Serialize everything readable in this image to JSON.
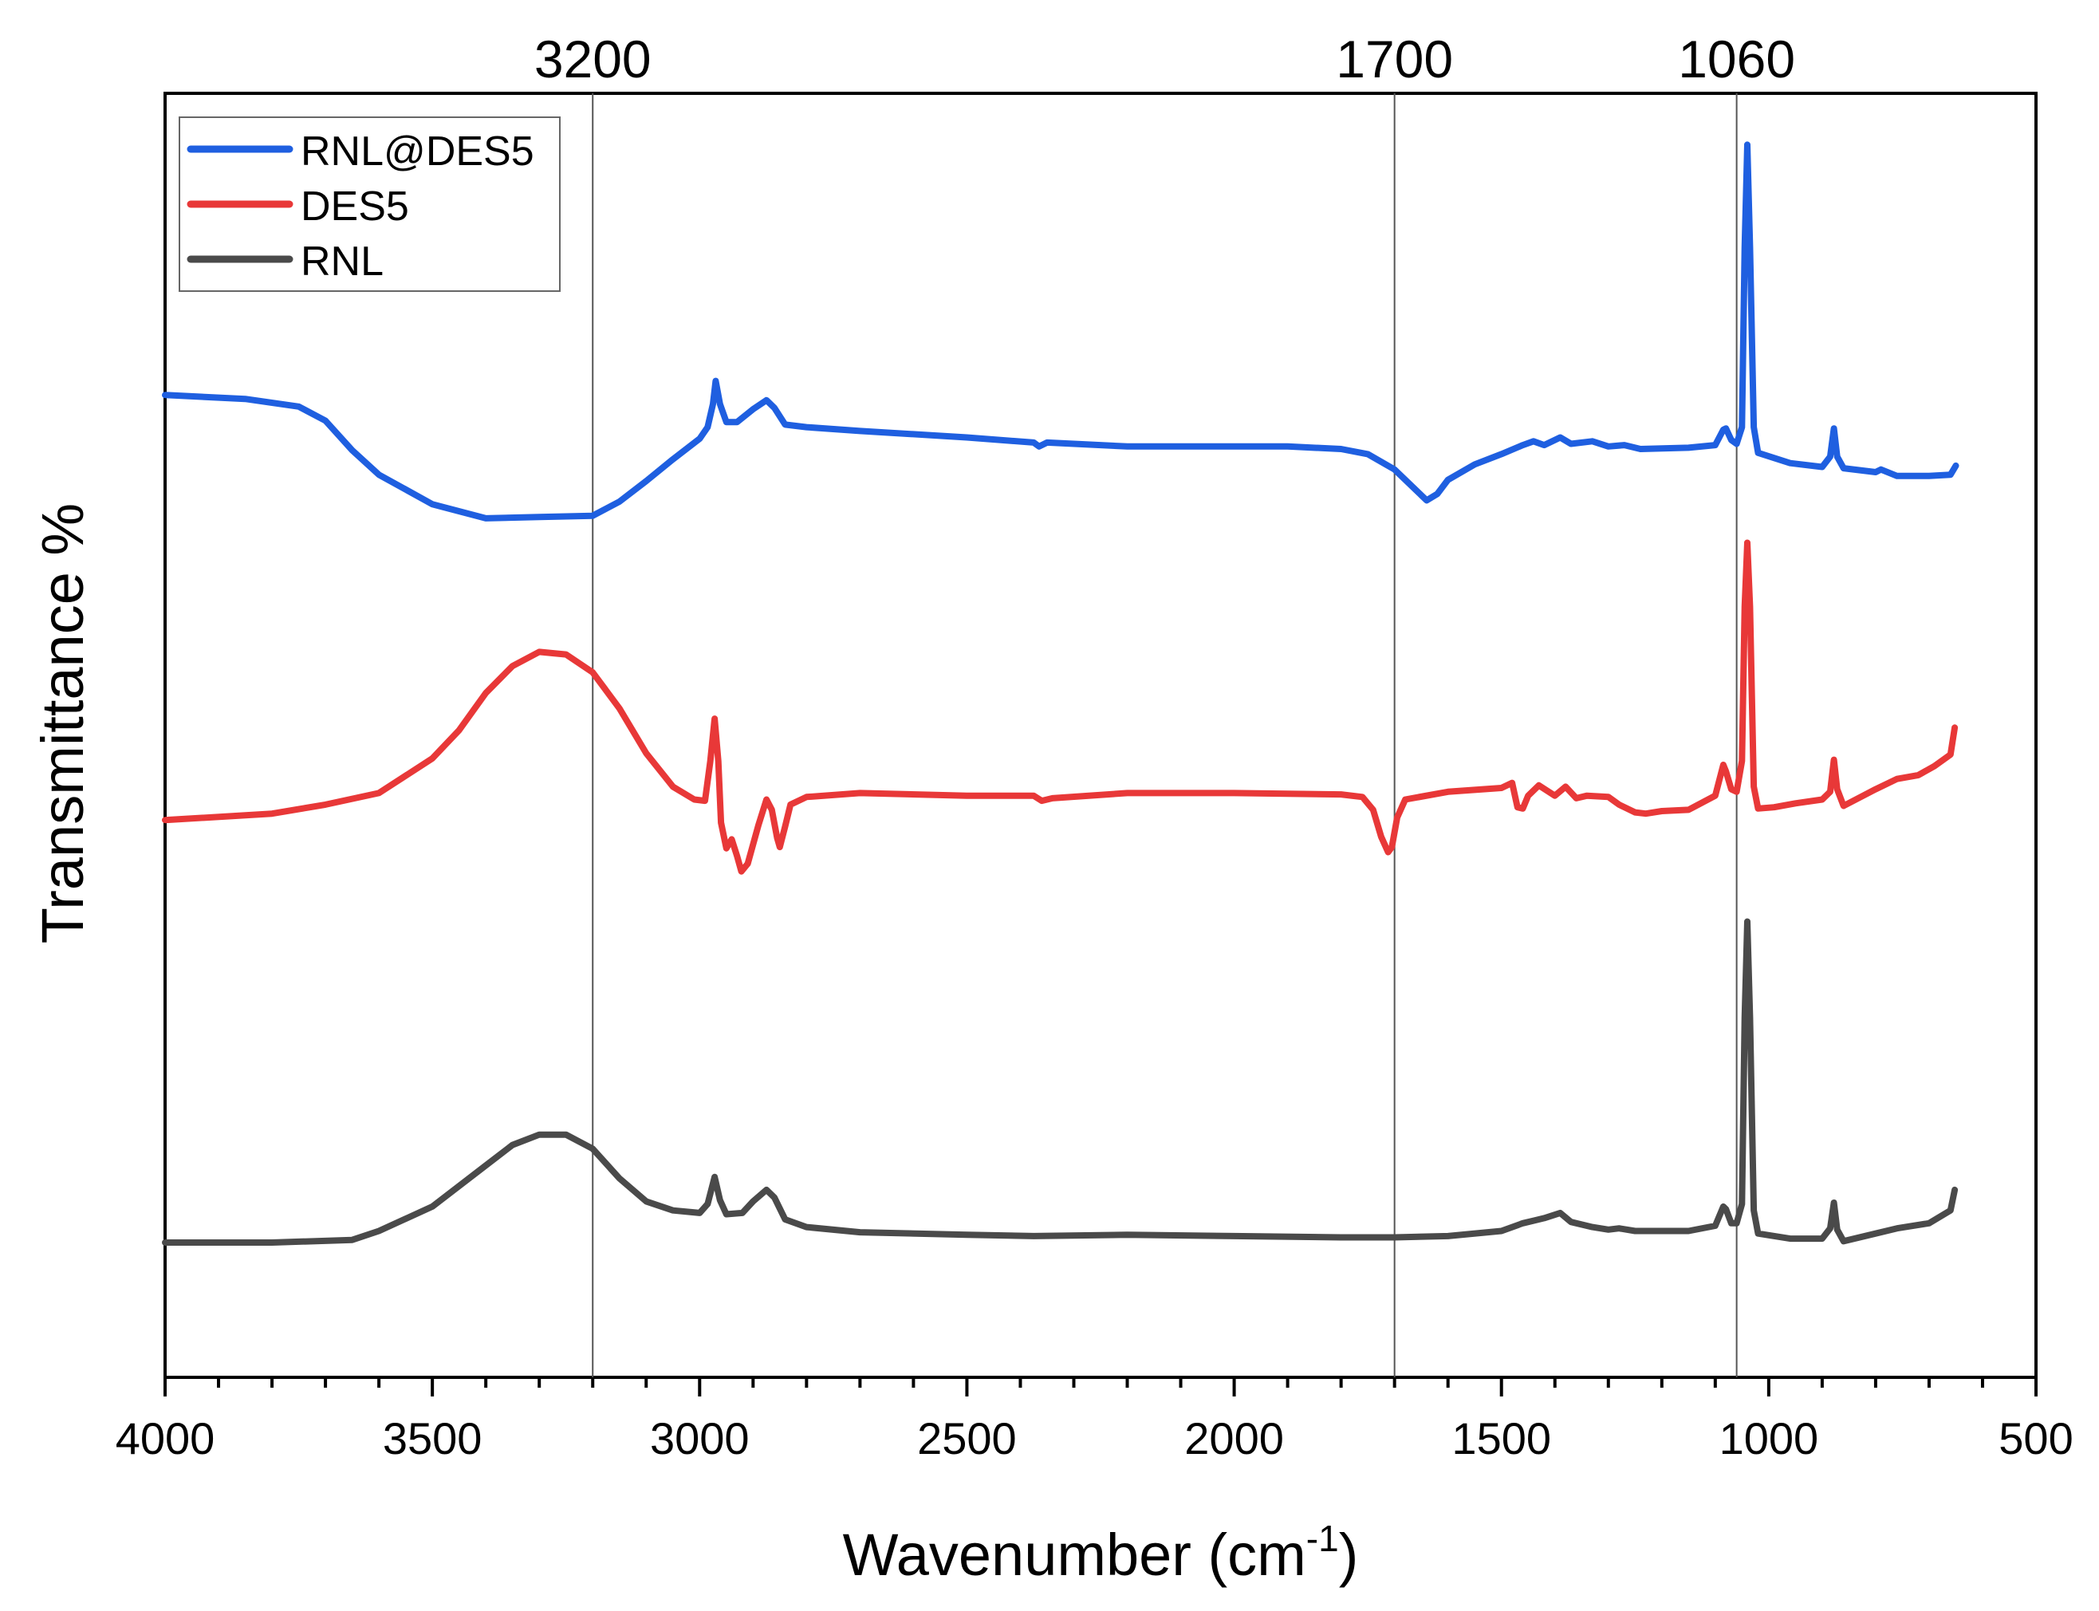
{
  "chart_data": {
    "type": "line",
    "title": "",
    "xlabel_main": "Wavenumber (cm",
    "xlabel_sup": "-1",
    "xlabel_tail": ")",
    "ylabel": "Transmittance %",
    "xlim": [
      4000,
      500
    ],
    "x_reversed": true,
    "y_ticks_shown": false,
    "y_units": "offset stacked, arbitrary",
    "ylim": [
      0,
      100
    ],
    "x_ticks": [
      4000,
      3500,
      3000,
      2500,
      2000,
      1500,
      1000,
      500
    ],
    "x_minor_step": 100,
    "reference_lines": [
      {
        "x": 3200,
        "label": "3200"
      },
      {
        "x": 1700,
        "label": "1700"
      },
      {
        "x": 1060,
        "label": "1060"
      }
    ],
    "legend": {
      "placement": "top-left",
      "entries": [
        "RNL@DES5",
        "DES5",
        "RNL"
      ]
    },
    "series": [
      {
        "name": "RNL@DES5",
        "color": "#1f5fe0",
        "points": [
          [
            4000,
            76.5
          ],
          [
            3850,
            76.2
          ],
          [
            3750,
            75.6
          ],
          [
            3700,
            74.5
          ],
          [
            3650,
            72.2
          ],
          [
            3600,
            70.3
          ],
          [
            3500,
            68.0
          ],
          [
            3400,
            66.9
          ],
          [
            3300,
            67.0
          ],
          [
            3200,
            67.1
          ],
          [
            3150,
            68.2
          ],
          [
            3100,
            69.8
          ],
          [
            3050,
            71.5
          ],
          [
            3000,
            73.1
          ],
          [
            2985,
            74.0
          ],
          [
            2975,
            75.8
          ],
          [
            2970,
            77.6
          ],
          [
            2962,
            75.8
          ],
          [
            2950,
            74.4
          ],
          [
            2930,
            74.4
          ],
          [
            2900,
            75.4
          ],
          [
            2875,
            76.1
          ],
          [
            2860,
            75.5
          ],
          [
            2840,
            74.2
          ],
          [
            2800,
            74.0
          ],
          [
            2700,
            73.7
          ],
          [
            2500,
            73.2
          ],
          [
            2375,
            72.8
          ],
          [
            2365,
            72.5
          ],
          [
            2350,
            72.8
          ],
          [
            2200,
            72.5
          ],
          [
            2000,
            72.5
          ],
          [
            1900,
            72.5
          ],
          [
            1800,
            72.3
          ],
          [
            1750,
            71.9
          ],
          [
            1700,
            70.7
          ],
          [
            1660,
            69.1
          ],
          [
            1640,
            68.3
          ],
          [
            1620,
            68.8
          ],
          [
            1600,
            69.9
          ],
          [
            1550,
            71.1
          ],
          [
            1500,
            71.9
          ],
          [
            1460,
            72.6
          ],
          [
            1440,
            72.9
          ],
          [
            1420,
            72.6
          ],
          [
            1390,
            73.2
          ],
          [
            1370,
            72.7
          ],
          [
            1330,
            72.9
          ],
          [
            1300,
            72.5
          ],
          [
            1270,
            72.6
          ],
          [
            1240,
            72.3
          ],
          [
            1150,
            72.4
          ],
          [
            1100,
            72.6
          ],
          [
            1085,
            73.8
          ],
          [
            1080,
            73.9
          ],
          [
            1070,
            73.0
          ],
          [
            1060,
            72.7
          ],
          [
            1050,
            74.0
          ],
          [
            1045,
            88.0
          ],
          [
            1040,
            96.0
          ],
          [
            1035,
            88.0
          ],
          [
            1028,
            74.0
          ],
          [
            1020,
            72.0
          ],
          [
            960,
            71.2
          ],
          [
            900,
            70.9
          ],
          [
            885,
            71.7
          ],
          [
            878,
            73.9
          ],
          [
            872,
            71.7
          ],
          [
            860,
            70.8
          ],
          [
            800,
            70.5
          ],
          [
            790,
            70.7
          ],
          [
            760,
            70.2
          ],
          [
            700,
            70.2
          ],
          [
            660,
            70.3
          ],
          [
            650,
            71.0
          ]
        ]
      },
      {
        "name": "DES5",
        "color": "#e83838",
        "points": [
          [
            4000,
            43.4
          ],
          [
            3800,
            43.9
          ],
          [
            3700,
            44.6
          ],
          [
            3600,
            45.5
          ],
          [
            3500,
            48.2
          ],
          [
            3450,
            50.4
          ],
          [
            3400,
            53.3
          ],
          [
            3350,
            55.4
          ],
          [
            3300,
            56.5
          ],
          [
            3250,
            56.3
          ],
          [
            3200,
            54.9
          ],
          [
            3150,
            52.1
          ],
          [
            3100,
            48.6
          ],
          [
            3050,
            46.0
          ],
          [
            3010,
            45.0
          ],
          [
            2990,
            44.9
          ],
          [
            2980,
            48.0
          ],
          [
            2972,
            51.3
          ],
          [
            2965,
            48.0
          ],
          [
            2960,
            43.2
          ],
          [
            2950,
            41.2
          ],
          [
            2940,
            41.9
          ],
          [
            2930,
            40.6
          ],
          [
            2922,
            39.4
          ],
          [
            2910,
            40.0
          ],
          [
            2890,
            43.0
          ],
          [
            2875,
            45.0
          ],
          [
            2865,
            44.2
          ],
          [
            2855,
            42.0
          ],
          [
            2850,
            41.3
          ],
          [
            2840,
            42.9
          ],
          [
            2830,
            44.6
          ],
          [
            2800,
            45.2
          ],
          [
            2700,
            45.5
          ],
          [
            2500,
            45.3
          ],
          [
            2375,
            45.3
          ],
          [
            2360,
            44.9
          ],
          [
            2340,
            45.1
          ],
          [
            2200,
            45.5
          ],
          [
            2000,
            45.5
          ],
          [
            1800,
            45.4
          ],
          [
            1760,
            45.2
          ],
          [
            1740,
            44.2
          ],
          [
            1725,
            42.1
          ],
          [
            1712,
            40.9
          ],
          [
            1705,
            41.3
          ],
          [
            1695,
            43.6
          ],
          [
            1680,
            45.0
          ],
          [
            1600,
            45.6
          ],
          [
            1500,
            45.9
          ],
          [
            1480,
            46.3
          ],
          [
            1470,
            44.4
          ],
          [
            1460,
            44.3
          ],
          [
            1450,
            45.3
          ],
          [
            1430,
            46.1
          ],
          [
            1400,
            45.3
          ],
          [
            1380,
            46.0
          ],
          [
            1360,
            45.1
          ],
          [
            1340,
            45.3
          ],
          [
            1300,
            45.2
          ],
          [
            1280,
            44.6
          ],
          [
            1250,
            44.0
          ],
          [
            1230,
            43.9
          ],
          [
            1200,
            44.1
          ],
          [
            1150,
            44.2
          ],
          [
            1100,
            45.3
          ],
          [
            1085,
            47.7
          ],
          [
            1080,
            47.2
          ],
          [
            1070,
            45.8
          ],
          [
            1060,
            45.6
          ],
          [
            1050,
            48.0
          ],
          [
            1045,
            60.0
          ],
          [
            1040,
            65.0
          ],
          [
            1035,
            60.0
          ],
          [
            1028,
            46.0
          ],
          [
            1020,
            44.3
          ],
          [
            990,
            44.4
          ],
          [
            950,
            44.7
          ],
          [
            900,
            45.0
          ],
          [
            885,
            45.6
          ],
          [
            878,
            48.1
          ],
          [
            872,
            45.8
          ],
          [
            860,
            44.5
          ],
          [
            800,
            45.8
          ],
          [
            760,
            46.6
          ],
          [
            720,
            46.9
          ],
          [
            690,
            47.6
          ],
          [
            660,
            48.5
          ],
          [
            652,
            50.6
          ]
        ]
      },
      {
        "name": "RNL",
        "color": "#4a4a4a",
        "points": [
          [
            4000,
            10.5
          ],
          [
            3800,
            10.5
          ],
          [
            3650,
            10.7
          ],
          [
            3600,
            11.4
          ],
          [
            3500,
            13.3
          ],
          [
            3400,
            16.5
          ],
          [
            3350,
            18.1
          ],
          [
            3300,
            18.9
          ],
          [
            3250,
            18.9
          ],
          [
            3200,
            17.8
          ],
          [
            3150,
            15.5
          ],
          [
            3100,
            13.7
          ],
          [
            3050,
            13.0
          ],
          [
            3000,
            12.8
          ],
          [
            2985,
            13.5
          ],
          [
            2972,
            15.6
          ],
          [
            2962,
            13.8
          ],
          [
            2950,
            12.7
          ],
          [
            2920,
            12.8
          ],
          [
            2900,
            13.7
          ],
          [
            2875,
            14.6
          ],
          [
            2860,
            14.0
          ],
          [
            2840,
            12.3
          ],
          [
            2800,
            11.7
          ],
          [
            2700,
            11.3
          ],
          [
            2500,
            11.1
          ],
          [
            2375,
            11.0
          ],
          [
            2200,
            11.1
          ],
          [
            2000,
            11.0
          ],
          [
            1800,
            10.9
          ],
          [
            1700,
            10.9
          ],
          [
            1600,
            11.0
          ],
          [
            1500,
            11.4
          ],
          [
            1460,
            12.0
          ],
          [
            1440,
            12.2
          ],
          [
            1420,
            12.4
          ],
          [
            1390,
            12.8
          ],
          [
            1370,
            12.1
          ],
          [
            1330,
            11.7
          ],
          [
            1300,
            11.5
          ],
          [
            1280,
            11.6
          ],
          [
            1250,
            11.4
          ],
          [
            1150,
            11.4
          ],
          [
            1100,
            11.8
          ],
          [
            1085,
            13.3
          ],
          [
            1080,
            13.1
          ],
          [
            1070,
            12.0
          ],
          [
            1060,
            12.0
          ],
          [
            1050,
            13.5
          ],
          [
            1045,
            28.0
          ],
          [
            1040,
            35.5
          ],
          [
            1035,
            28.0
          ],
          [
            1028,
            13.0
          ],
          [
            1020,
            11.2
          ],
          [
            960,
            10.8
          ],
          [
            900,
            10.8
          ],
          [
            885,
            11.6
          ],
          [
            878,
            13.6
          ],
          [
            872,
            11.5
          ],
          [
            860,
            10.6
          ],
          [
            800,
            11.2
          ],
          [
            760,
            11.6
          ],
          [
            700,
            12.0
          ],
          [
            660,
            13.0
          ],
          [
            652,
            14.6
          ]
        ]
      }
    ]
  }
}
